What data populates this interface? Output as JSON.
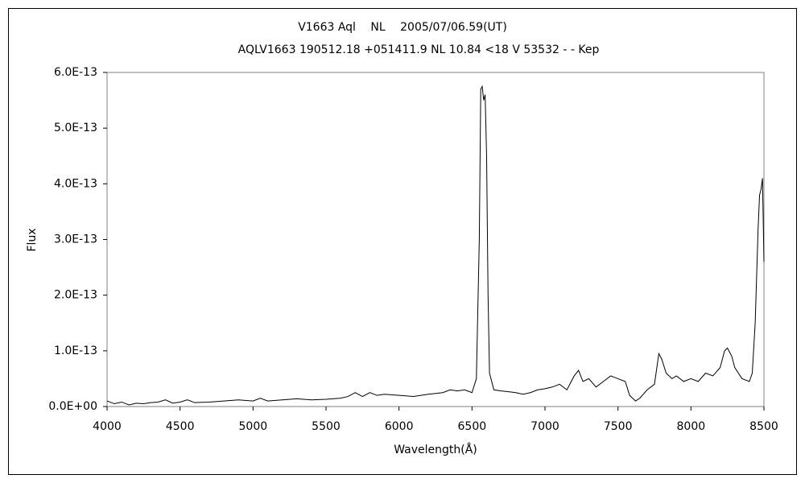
{
  "chart_data": {
    "type": "line",
    "title": "V1663 Aql　 NL　 2005/07/06.59(UT)",
    "subtitle": "AQLV1663 190512.18 +051411.9 NL 10.84 <18 V 53532 - - Kep",
    "x_label": "Wavelength(Å)",
    "y_label": "Flux",
    "xlim": [
      4000,
      8500
    ],
    "xticks": [
      4000,
      4500,
      5000,
      5500,
      6000,
      6500,
      7000,
      7500,
      8000,
      8500
    ],
    "ylim": [
      0,
      6e-13
    ],
    "yticks": [
      {
        "value": 0,
        "label": "0.0E+00"
      },
      {
        "value": 1e-13,
        "label": "1.0E-13"
      },
      {
        "value": 2e-13,
        "label": "2.0E-13"
      },
      {
        "value": 3e-13,
        "label": "3.0E-13"
      },
      {
        "value": 4e-13,
        "label": "4.0E-13"
      },
      {
        "value": 5e-13,
        "label": "5.0E-13"
      },
      {
        "value": 6e-13,
        "label": "6.0E-13"
      }
    ],
    "grid": false,
    "series": [
      {
        "color": "#000000",
        "x": [
          4000,
          4050,
          4100,
          4150,
          4200,
          4250,
          4300,
          4350,
          4400,
          4450,
          4500,
          4550,
          4600,
          4700,
          4800,
          4900,
          5000,
          5050,
          5100,
          5200,
          5300,
          5400,
          5500,
          5600,
          5650,
          5700,
          5750,
          5800,
          5850,
          5900,
          6000,
          6100,
          6200,
          6300,
          6350,
          6400,
          6450,
          6500,
          6530,
          6550,
          6560,
          6570,
          6580,
          6590,
          6600,
          6610,
          6620,
          6650,
          6700,
          6800,
          6850,
          6900,
          6950,
          7000,
          7050,
          7100,
          7150,
          7200,
          7230,
          7260,
          7300,
          7350,
          7400,
          7450,
          7500,
          7550,
          7580,
          7620,
          7650,
          7700,
          7750,
          7780,
          7800,
          7830,
          7870,
          7900,
          7950,
          8000,
          8050,
          8100,
          8150,
          8200,
          8230,
          8250,
          8280,
          8300,
          8350,
          8400,
          8420,
          8440,
          8460,
          8470,
          8480,
          8490,
          8500
        ],
        "values": [
          1e-14,
          5e-15,
          8e-15,
          3e-15,
          6e-15,
          5e-15,
          7e-15,
          8e-15,
          1.2e-14,
          6e-15,
          8e-15,
          1.2e-14,
          7e-15,
          8e-15,
          1e-14,
          1.2e-14,
          1e-14,
          1.5e-14,
          1e-14,
          1.2e-14,
          1.4e-14,
          1.2e-14,
          1.3e-14,
          1.5e-14,
          1.8e-14,
          2.5e-14,
          1.8e-14,
          2.5e-14,
          2e-14,
          2.2e-14,
          2e-14,
          1.8e-14,
          2.2e-14,
          2.5e-14,
          3e-14,
          2.8e-14,
          3e-14,
          2.5e-14,
          5e-14,
          3e-13,
          5.7e-13,
          5.75e-13,
          5.5e-13,
          5.6e-13,
          4.5e-13,
          2e-13,
          6e-14,
          3e-14,
          2.8e-14,
          2.5e-14,
          2.2e-14,
          2.5e-14,
          3e-14,
          3.2e-14,
          3.5e-14,
          4e-14,
          3e-14,
          5.5e-14,
          6.5e-14,
          4.5e-14,
          5e-14,
          3.5e-14,
          4.5e-14,
          5.5e-14,
          5e-14,
          4.5e-14,
          2e-14,
          1e-14,
          1.5e-14,
          3e-14,
          4e-14,
          9.5e-14,
          8.5e-14,
          6e-14,
          5e-14,
          5.5e-14,
          4.5e-14,
          5e-14,
          4.5e-14,
          6e-14,
          5.5e-14,
          7e-14,
          1e-13,
          1.05e-13,
          9e-14,
          7e-14,
          5e-14,
          4.5e-14,
          6e-14,
          1.5e-13,
          3.2e-13,
          3.8e-13,
          3.9e-13,
          4.1e-13,
          2.6e-13
        ]
      }
    ]
  }
}
